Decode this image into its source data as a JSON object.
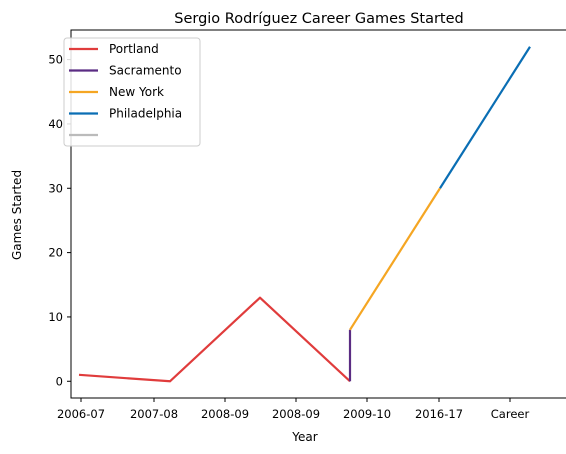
{
  "chart_data": {
    "type": "line",
    "title": "Sergio Rodríguez Career Games Started",
    "xlabel": "Year",
    "ylabel": "Games Started",
    "categories": [
      "2006-07",
      "2007-08",
      "2008-09",
      "2008-09",
      "2009-10",
      "2016-17",
      "Career"
    ],
    "x_tick_labels": [
      "2006-07",
      "2007-08",
      "2008-09",
      "2008-09",
      "2009-10",
      "2016-17",
      "Career"
    ],
    "y_ticks": [
      0,
      10,
      20,
      30,
      40,
      50
    ],
    "ylim": [
      -2.6,
      54.6
    ],
    "grid": false,
    "legend_placement": "top-left",
    "series": [
      {
        "name": "Portland",
        "color": "#e03c3c",
        "points": [
          {
            "x": 0,
            "y": 1
          },
          {
            "x": 1,
            "y": 0
          },
          {
            "x": 2,
            "y": 13
          },
          {
            "x": 3,
            "y": 0
          }
        ]
      },
      {
        "name": "Sacramento",
        "color": "#5b2c83",
        "points": [
          {
            "x": 3,
            "y": 0
          },
          {
            "x": 3,
            "y": 8
          }
        ]
      },
      {
        "name": "New York",
        "color": "#f5a623",
        "points": [
          {
            "x": 3,
            "y": 8
          },
          {
            "x": 4,
            "y": 30
          }
        ]
      },
      {
        "name": "Philadelphia",
        "color": "#0a6eb4",
        "points": [
          {
            "x": 4,
            "y": 30
          },
          {
            "x": 5,
            "y": 52
          }
        ]
      },
      {
        "name": "",
        "color": "#bbbbbb",
        "points": []
      }
    ]
  }
}
